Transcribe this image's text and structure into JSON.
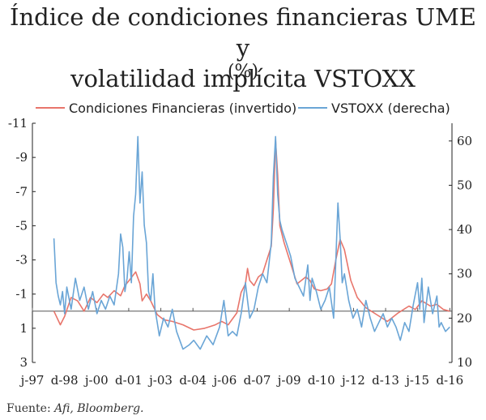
{
  "title_line1": "Índice de condiciones financieras UME y",
  "title_line2": "volatilidad implícita VSTOXX",
  "subtitle": "(%)",
  "source_prefix": "Fuente: ",
  "source_italic": "Afi, Bloomberg.",
  "chart_data": {
    "type": "line",
    "x_tick_labels": [
      "j-97",
      "d-98",
      "j-00",
      "d-01",
      "j-03",
      "d-04",
      "j-06",
      "d-07",
      "j-09",
      "d-10",
      "j-12",
      "d-13",
      "j-15",
      "d-16"
    ],
    "x_range": [
      1997.5,
      2017.0
    ],
    "left_axis": {
      "ticks": [
        "-11",
        "-9",
        "-7",
        "-5",
        "-3",
        "-1",
        "1",
        "3"
      ],
      "range": [
        -11,
        3
      ],
      "inverted": true
    },
    "right_axis": {
      "ticks": [
        "60",
        "50",
        "40",
        "30",
        "20",
        "10"
      ],
      "range": [
        10,
        64
      ]
    },
    "legend": {
      "placement": "top"
    },
    "series": [
      {
        "name": "Condiciones Financieras (invertido)",
        "axis": "left",
        "color": "#e8756b",
        "x": [
          1998.5,
          1998.8,
          1999.0,
          1999.3,
          1999.6,
          1999.9,
          2000.2,
          2000.5,
          2000.8,
          2001.0,
          2001.3,
          2001.6,
          2001.8,
          2002.0,
          2002.3,
          2002.5,
          2002.6,
          2002.8,
          2003.0,
          2003.3,
          2003.6,
          2004.0,
          2004.5,
          2005.0,
          2005.5,
          2006.0,
          2006.3,
          2006.6,
          2007.0,
          2007.2,
          2007.4,
          2007.5,
          2007.6,
          2007.8,
          2008.0,
          2008.2,
          2008.4,
          2008.6,
          2008.7,
          2008.8,
          2008.9,
          2009.0,
          2009.2,
          2009.5,
          2009.8,
          2010.2,
          2010.4,
          2010.6,
          2010.9,
          2011.2,
          2011.4,
          2011.6,
          2011.8,
          2012.0,
          2012.3,
          2012.6,
          2013.0,
          2013.5,
          2014.0,
          2014.5,
          2015.0,
          2015.3,
          2015.6,
          2016.0,
          2016.3,
          2016.6,
          2016.9
        ],
        "y": [
          0.0,
          0.8,
          0.3,
          -0.8,
          -0.6,
          0.0,
          -0.8,
          -0.5,
          -1.0,
          -0.8,
          -1.2,
          -0.9,
          -1.5,
          -1.8,
          -2.3,
          -1.6,
          -0.6,
          -1.0,
          -0.6,
          0.2,
          0.5,
          0.6,
          0.8,
          1.1,
          1.0,
          0.8,
          0.6,
          0.8,
          0.1,
          -1.1,
          -1.6,
          -2.5,
          -1.8,
          -1.5,
          -2.0,
          -2.2,
          -3.0,
          -3.8,
          -6.0,
          -10.0,
          -8.0,
          -5.0,
          -4.0,
          -2.8,
          -1.6,
          -2.0,
          -1.8,
          -1.3,
          -1.2,
          -1.3,
          -1.6,
          -3.0,
          -4.2,
          -3.6,
          -1.8,
          -0.8,
          -0.2,
          0.2,
          0.6,
          0.1,
          -0.3,
          -0.1,
          -0.6,
          -0.3,
          -0.4,
          -0.1,
          0.0
        ]
      },
      {
        "name": "VSTOXX (derecha)",
        "axis": "right",
        "color": "#6aa5d6",
        "x": [
          1998.5,
          1998.6,
          1998.7,
          1998.8,
          1998.9,
          1999.0,
          1999.1,
          1999.3,
          1999.5,
          1999.7,
          1999.9,
          2000.1,
          2000.3,
          2000.5,
          2000.7,
          2000.9,
          2001.1,
          2001.3,
          2001.5,
          2001.6,
          2001.7,
          2001.8,
          2001.9,
          2002.0,
          2002.1,
          2002.2,
          2002.3,
          2002.4,
          2002.5,
          2002.6,
          2002.7,
          2002.8,
          2002.9,
          2003.0,
          2003.1,
          2003.2,
          2003.3,
          2003.4,
          2003.6,
          2003.8,
          2004.0,
          2004.2,
          2004.5,
          2004.8,
          2005.0,
          2005.3,
          2005.6,
          2005.9,
          2006.2,
          2006.4,
          2006.6,
          2006.8,
          2007.0,
          2007.2,
          2007.4,
          2007.5,
          2007.6,
          2007.8,
          2008.0,
          2008.2,
          2008.4,
          2008.6,
          2008.7,
          2008.8,
          2008.9,
          2009.0,
          2009.1,
          2009.3,
          2009.5,
          2009.7,
          2009.9,
          2010.1,
          2010.3,
          2010.4,
          2010.5,
          2010.7,
          2010.9,
          2011.1,
          2011.3,
          2011.5,
          2011.6,
          2011.7,
          2011.8,
          2011.9,
          2012.0,
          2012.2,
          2012.4,
          2012.6,
          2012.8,
          2013.0,
          2013.2,
          2013.4,
          2013.6,
          2013.8,
          2014.0,
          2014.2,
          2014.4,
          2014.6,
          2014.8,
          2015.0,
          2015.2,
          2015.4,
          2015.5,
          2015.6,
          2015.7,
          2015.9,
          2016.1,
          2016.3,
          2016.4,
          2016.5,
          2016.7,
          2016.9
        ],
        "y": [
          38,
          28,
          25,
          23,
          26,
          21,
          27,
          22,
          29,
          24,
          27,
          22,
          26,
          21,
          24,
          22,
          25,
          23,
          30,
          39,
          36,
          26,
          29,
          35,
          28,
          43,
          48,
          61,
          46,
          53,
          41,
          37,
          26,
          24,
          30,
          22,
          19,
          16,
          20,
          18,
          22,
          17,
          13,
          14,
          15,
          13,
          16,
          14,
          18,
          24,
          16,
          17,
          16,
          21,
          28,
          24,
          20,
          22,
          27,
          30,
          28,
          37,
          52,
          61,
          48,
          42,
          40,
          37,
          34,
          29,
          27,
          25,
          32,
          24,
          29,
          26,
          22,
          24,
          27,
          20,
          33,
          46,
          38,
          28,
          30,
          24,
          20,
          22,
          18,
          24,
          20,
          17,
          19,
          21,
          18,
          20,
          18,
          15,
          19,
          17,
          23,
          28,
          22,
          29,
          19,
          27,
          21,
          25,
          18,
          19,
          17,
          18
        ]
      }
    ]
  }
}
